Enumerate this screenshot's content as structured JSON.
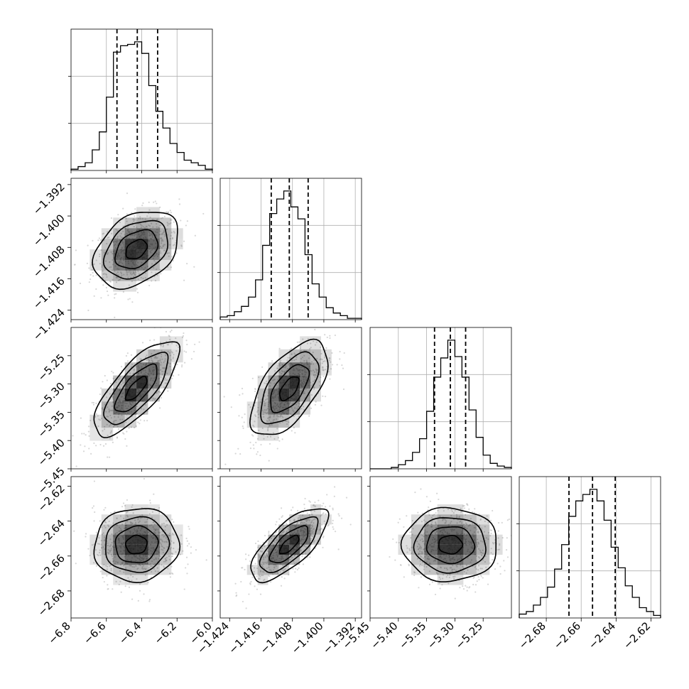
{
  "chart_data": {
    "type": "corner",
    "parameters": [
      {
        "range": [
          -6.8,
          -6.0
        ],
        "ticks": [
          -6.8,
          -6.6,
          -6.4,
          -6.2,
          -6.0
        ],
        "tick_labels": [
          "−6.8",
          "−6.6",
          "−6.4",
          "−6.2",
          "−6.0"
        ],
        "quantiles": [
          -6.54,
          -6.425,
          -6.31
        ],
        "hist_x": [
          -6.79,
          -6.75,
          -6.71,
          -6.67,
          -6.63,
          -6.59,
          -6.55,
          -6.51,
          -6.47,
          -6.43,
          -6.39,
          -6.35,
          -6.31,
          -6.27,
          -6.23,
          -6.19,
          -6.15,
          -6.11,
          -6.07,
          -6.03
        ],
        "hist": [
          1,
          3,
          6,
          16,
          30,
          57,
          92,
          97,
          98,
          100,
          91,
          66,
          46,
          33,
          21,
          14,
          8,
          6,
          4,
          1
        ]
      },
      {
        "range": [
          -1.4264,
          -1.3904
        ],
        "ticks": [
          -1.424,
          -1.416,
          -1.408,
          -1.4,
          -1.392
        ],
        "tick_labels": [
          "−1.424",
          "−1.416",
          "−1.408",
          "−1.400",
          "−1.392"
        ],
        "quantiles": [
          -1.4134,
          -1.4088,
          -1.404
        ],
        "hist_x": [
          -1.4255,
          -1.4237,
          -1.4219,
          -1.4201,
          -1.4183,
          -1.4165,
          -1.4147,
          -1.4129,
          -1.4111,
          -1.4093,
          -1.4075,
          -1.4057,
          -1.4039,
          -1.4021,
          -1.4003,
          -1.3985,
          -1.3967,
          -1.3949,
          -1.3931,
          -1.3913
        ],
        "hist": [
          2,
          3,
          6,
          10,
          17,
          30,
          56,
          80,
          91,
          97,
          85,
          76,
          49,
          27,
          17,
          9,
          5,
          3,
          1,
          1
        ]
      },
      {
        "range": [
          -5.45,
          -5.2
        ],
        "ticks": [
          -5.45,
          -5.4,
          -5.35,
          -5.3,
          -5.25
        ],
        "tick_labels": [
          "−5.45",
          "−5.40",
          "−5.35",
          "−5.30",
          "−5.25"
        ],
        "quantiles": [
          -5.336,
          -5.308,
          -5.281
        ],
        "hist_x": [
          -5.444,
          -5.431,
          -5.419,
          -5.406,
          -5.394,
          -5.381,
          -5.369,
          -5.356,
          -5.344,
          -5.331,
          -5.319,
          -5.306,
          -5.294,
          -5.281,
          -5.269,
          -5.256,
          -5.244,
          -5.231,
          -5.219,
          -5.206
        ],
        "hist": [
          0,
          0,
          0,
          1,
          3,
          6,
          12,
          22,
          42,
          67,
          81,
          94,
          82,
          67,
          43,
          23,
          10,
          4,
          2,
          1
        ]
      },
      {
        "range": [
          -2.6955,
          -2.6145
        ],
        "ticks": [
          -2.68,
          -2.66,
          -2.64,
          -2.62
        ],
        "tick_labels": [
          "−2.68",
          "−2.66",
          "−2.64",
          "−2.62"
        ],
        "quantiles": [
          -2.667,
          -2.6535,
          -2.6405
        ],
        "hist_x": [
          -2.693,
          -2.6889,
          -2.6849,
          -2.6808,
          -2.6768,
          -2.6727,
          -2.6687,
          -2.6646,
          -2.6606,
          -2.6565,
          -2.6525,
          -2.6484,
          -2.6444,
          -2.6403,
          -2.6363,
          -2.6322,
          -2.6282,
          -2.6241,
          -2.6201,
          -2.616
        ],
        "hist": [
          3,
          5,
          10,
          16,
          24,
          38,
          57,
          79,
          91,
          96,
          100,
          91,
          76,
          55,
          39,
          25,
          16,
          8,
          5,
          2
        ]
      }
    ],
    "pairs": [
      {
        "row": 1,
        "col": 0,
        "mean": [
          -6.43,
          -1.4085
        ],
        "sd": [
          0.12,
          0.0049
        ],
        "corr": 0.35,
        "mode": [
          -6.48,
          -1.4095
        ]
      },
      {
        "row": 2,
        "col": 0,
        "mean": [
          -6.43,
          -5.308
        ],
        "sd": [
          0.12,
          0.042
        ],
        "corr": 0.75,
        "mode": [
          -6.46,
          -5.311
        ]
      },
      {
        "row": 2,
        "col": 1,
        "mean": [
          -1.4088,
          -5.308
        ],
        "sd": [
          0.0049,
          0.042
        ],
        "corr": 0.6,
        "mode": [
          -1.41,
          -5.306
        ]
      },
      {
        "row": 3,
        "col": 0,
        "mean": [
          -6.43,
          -2.6535
        ],
        "sd": [
          0.12,
          0.0105
        ],
        "corr": 0.05,
        "mode": [
          -6.43,
          -2.651
        ]
      },
      {
        "row": 3,
        "col": 1,
        "mean": [
          -1.4088,
          -2.6535
        ],
        "sd": [
          0.0049,
          0.0105
        ],
        "corr": 0.72,
        "mode": [
          -1.4105,
          -2.655
        ]
      },
      {
        "row": 3,
        "col": 2,
        "mean": [
          -5.308,
          -2.6535
        ],
        "sd": [
          0.042,
          0.0105
        ],
        "corr": 0.0,
        "mode": [
          -5.308,
          -2.654
        ]
      }
    ],
    "scatter_points_per_panel": 700,
    "contour_levels_sigma": [
      0.5,
      1.0,
      1.5,
      2.0
    ],
    "grid": true,
    "colors": {
      "line": "#000000",
      "scatter": "#bdbdbd",
      "density": "#000000",
      "grid": "#b0b0b0"
    }
  }
}
